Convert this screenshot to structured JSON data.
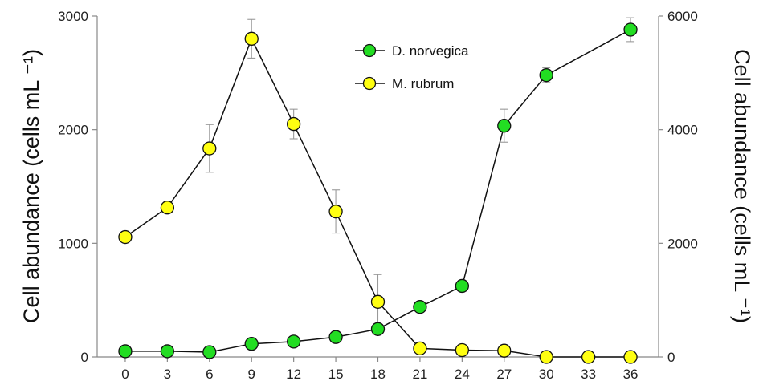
{
  "chart_data": {
    "type": "line",
    "x": [
      0,
      3,
      6,
      9,
      12,
      15,
      18,
      21,
      24,
      27,
      30,
      33,
      36
    ],
    "xlim": [
      -2,
      38
    ],
    "xticks": [
      "0",
      "3",
      "6",
      "9",
      "12",
      "15",
      "18",
      "21",
      "24",
      "27",
      "30",
      "33",
      "36"
    ],
    "ylabel": "Cell abundance (cells mL ⁻¹)",
    "ylabel_right": "Cell abundance (cells mL ⁻¹)",
    "ylim": [
      0,
      3000
    ],
    "ylim_right": [
      0,
      6000
    ],
    "yticks": [
      "0",
      "1000",
      "2000",
      "3000"
    ],
    "yticks_right": [
      "0",
      "2000",
      "4000",
      "6000"
    ],
    "legend_position": "top-center",
    "series": [
      {
        "name": "D. norvegica",
        "axis": "right",
        "color": "#22dd22",
        "values": [
          100,
          100,
          85,
          230,
          270,
          350,
          490,
          880,
          1250,
          4070,
          4960,
          null,
          5760
        ],
        "errors": [
          0,
          0,
          0,
          0,
          0,
          0,
          0,
          0,
          0,
          290,
          130,
          null,
          210
        ]
      },
      {
        "name": "M. rubrum",
        "axis": "left",
        "color": "#ffff11",
        "values": [
          1055,
          1315,
          1835,
          2800,
          2050,
          1280,
          485,
          75,
          60,
          55,
          0,
          0,
          0
        ],
        "errors": [
          0,
          0,
          210,
          170,
          130,
          190,
          240,
          0,
          0,
          0,
          0,
          0,
          0
        ]
      }
    ]
  }
}
